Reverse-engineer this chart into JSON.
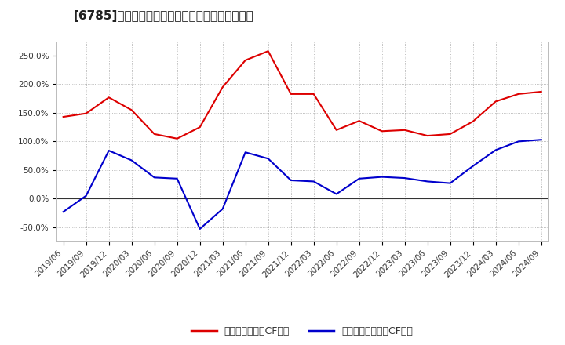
{
  "title": "[6785]　有利子負債キャッシュフロー比率の推移",
  "x_labels": [
    "2019/06",
    "2019/09",
    "2019/12",
    "2020/03",
    "2020/06",
    "2020/09",
    "2020/12",
    "2021/03",
    "2021/06",
    "2021/09",
    "2021/12",
    "2022/03",
    "2022/06",
    "2022/09",
    "2022/12",
    "2023/03",
    "2023/06",
    "2023/09",
    "2023/12",
    "2024/03",
    "2024/06",
    "2024/09"
  ],
  "red_values": [
    143,
    149,
    177,
    155,
    113,
    105,
    125,
    195,
    242,
    258,
    183,
    183,
    120,
    136,
    118,
    120,
    110,
    113,
    135,
    170,
    183,
    187
  ],
  "blue_values": [
    -23,
    5,
    84,
    67,
    37,
    35,
    -53,
    -18,
    81,
    70,
    32,
    30,
    8,
    35,
    38,
    36,
    30,
    27,
    57,
    85,
    100,
    103
  ],
  "red_color": "#dd0000",
  "blue_color": "#0000cc",
  "ylim": [
    -75,
    275
  ],
  "yticks": [
    -50,
    0,
    50,
    100,
    150,
    200,
    250
  ],
  "ytick_labels": [
    "-50.0%",
    "0.0%",
    "50.0%",
    "100.0%",
    "150.0%",
    "200.0%",
    "250.0%"
  ],
  "legend_red": "有利子負債営業CF比率",
  "legend_blue": "有利子負債フリーCF比率",
  "bg_color": "#ffffff",
  "plot_bg_color": "#ffffff",
  "grid_color": "#aaaaaa",
  "zero_line_color": "#333333",
  "title_fontsize": 11,
  "tick_fontsize": 7.5,
  "legend_fontsize": 9
}
